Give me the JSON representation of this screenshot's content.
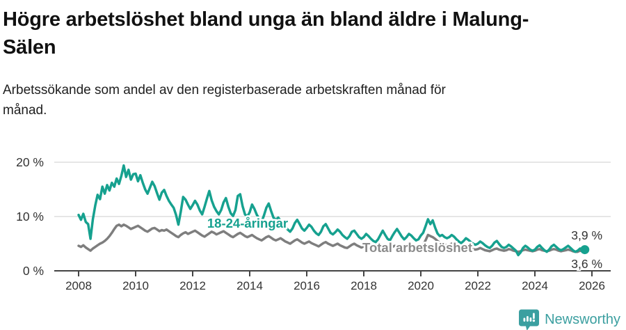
{
  "header": {
    "title": "Högre arbetslöshet bland unga än bland äldre i Malung-Sälen",
    "subtitle": "Arbetssökande som andel av den registerbaserade arbetskraften månad för månad."
  },
  "chart_data": {
    "type": "line",
    "unit": "percent",
    "x_start_year": 2008,
    "x_interval": "monthly",
    "x_end": "2025-10",
    "x_ticks": [
      2008,
      2010,
      2012,
      2014,
      2016,
      2018,
      2020,
      2022,
      2024,
      2026
    ],
    "y_ticks": [
      {
        "value": 0,
        "label": "0 %"
      },
      {
        "value": 10,
        "label": "10 %"
      },
      {
        "value": 20,
        "label": "20 %"
      }
    ],
    "ylim": [
      0,
      21
    ],
    "xlim": [
      2007.2,
      2026.6
    ],
    "grid": "horizontal",
    "legend_position": "inline-labels",
    "series": [
      {
        "name": "18-24-åringar",
        "color": "#16a18f",
        "end_label": "3,9 %",
        "end_value": 3.9,
        "end_dot": true,
        "values": [
          10.3,
          9.4,
          10.5,
          9.0,
          8.6,
          5.9,
          9.5,
          12.0,
          14.0,
          13.2,
          15.5,
          14.2,
          15.8,
          14.8,
          16.2,
          15.5,
          17.0,
          16.0,
          17.5,
          19.4,
          17.3,
          18.6,
          16.8,
          17.8,
          17.9,
          16.5,
          17.6,
          16.2,
          15.0,
          14.2,
          15.3,
          16.4,
          15.6,
          14.3,
          13.1,
          14.4,
          14.9,
          13.8,
          12.9,
          12.2,
          11.6,
          10.3,
          8.5,
          10.9,
          13.6,
          13.1,
          12.2,
          11.4,
          12.1,
          12.9,
          12.2,
          11.1,
          10.4,
          11.8,
          13.3,
          14.7,
          13.0,
          11.8,
          11.0,
          10.4,
          11.2,
          12.6,
          13.4,
          11.8,
          10.6,
          10.1,
          11.2,
          13.8,
          14.1,
          11.9,
          10.4,
          10.0,
          10.8,
          12.2,
          11.4,
          10.3,
          9.6,
          9.0,
          10.2,
          11.6,
          12.4,
          11.0,
          9.8,
          9.4,
          9.8,
          9.2,
          8.6,
          8.0,
          7.6,
          7.2,
          7.8,
          8.8,
          9.4,
          8.6,
          7.8,
          7.4,
          7.9,
          8.5,
          8.1,
          7.4,
          6.9,
          6.6,
          7.2,
          8.2,
          8.6,
          7.8,
          7.0,
          6.7,
          7.1,
          7.6,
          7.2,
          6.6,
          6.2,
          5.9,
          6.4,
          7.2,
          7.4,
          6.8,
          6.2,
          5.9,
          6.2,
          6.8,
          6.4,
          5.9,
          5.5,
          5.3,
          5.8,
          6.6,
          7.4,
          6.6,
          5.9,
          5.6,
          6.4,
          7.1,
          7.7,
          7.0,
          6.3,
          5.8,
          6.2,
          6.8,
          6.5,
          6.0,
          5.6,
          5.8,
          6.5,
          7.0,
          8.2,
          9.5,
          8.6,
          9.3,
          8.0,
          6.9,
          6.4,
          6.6,
          6.2,
          6.0,
          6.2,
          6.6,
          6.3,
          5.8,
          5.4,
          5.1,
          5.5,
          6.0,
          5.7,
          5.3,
          5.0,
          4.8,
          5.0,
          5.4,
          5.1,
          4.7,
          4.4,
          4.2,
          4.6,
          5.2,
          5.5,
          4.9,
          4.4,
          4.2,
          4.4,
          4.8,
          4.5,
          4.1,
          3.7,
          2.9,
          3.4,
          4.2,
          4.6,
          4.3,
          3.9,
          3.7,
          3.9,
          4.4,
          4.7,
          4.2,
          3.8,
          3.5,
          3.9,
          4.5,
          4.8,
          4.4,
          4.0,
          3.8,
          4.0,
          4.3,
          4.6,
          4.2,
          3.8,
          3.5,
          3.7,
          4.1,
          4.0,
          3.9
        ]
      },
      {
        "name": "Total arbetslöshet",
        "color": "#7e7e7e",
        "end_label": "3,6 %",
        "end_value": 3.6,
        "end_dot": false,
        "values": [
          4.6,
          4.4,
          4.7,
          4.3,
          4.0,
          3.7,
          4.1,
          4.4,
          4.7,
          5.0,
          5.2,
          5.5,
          5.9,
          6.4,
          7.0,
          7.7,
          8.3,
          8.5,
          8.2,
          8.5,
          8.3,
          8.0,
          7.7,
          7.9,
          8.1,
          8.3,
          8.0,
          7.7,
          7.4,
          7.2,
          7.5,
          7.8,
          7.9,
          7.6,
          7.3,
          7.5,
          7.4,
          7.6,
          7.3,
          7.0,
          6.7,
          6.4,
          6.2,
          6.6,
          6.9,
          7.1,
          6.8,
          7.0,
          7.2,
          7.4,
          7.1,
          6.8,
          6.5,
          6.3,
          6.6,
          6.9,
          7.2,
          7.0,
          6.7,
          6.9,
          7.1,
          7.3,
          7.0,
          6.7,
          6.4,
          6.2,
          6.5,
          6.8,
          7.0,
          6.7,
          6.4,
          6.2,
          6.4,
          6.6,
          6.3,
          6.0,
          5.8,
          5.6,
          5.9,
          6.2,
          6.4,
          6.1,
          5.8,
          5.6,
          5.8,
          6.0,
          5.7,
          5.4,
          5.2,
          5.0,
          5.3,
          5.6,
          5.8,
          5.5,
          5.2,
          5.0,
          5.2,
          5.4,
          5.1,
          4.9,
          4.7,
          4.5,
          4.8,
          5.1,
          5.3,
          5.0,
          4.8,
          4.6,
          4.8,
          5.0,
          4.7,
          4.5,
          4.3,
          4.2,
          4.5,
          4.8,
          5.0,
          4.7,
          4.5,
          4.3,
          4.5,
          4.7,
          4.4,
          4.2,
          4.1,
          4.0,
          4.3,
          4.6,
          4.8,
          4.5,
          4.3,
          4.2,
          4.4,
          4.6,
          4.4,
          4.2,
          4.1,
          4.0,
          4.2,
          4.5,
          4.6,
          4.4,
          4.2,
          4.3,
          4.5,
          4.8,
          5.6,
          6.6,
          6.4,
          6.2,
          5.9,
          5.5,
          5.2,
          5.0,
          4.8,
          4.7,
          4.8,
          5.0,
          4.8,
          4.5,
          4.3,
          4.1,
          4.3,
          4.5,
          4.4,
          4.2,
          4.0,
          3.9,
          4.0,
          4.2,
          4.0,
          3.8,
          3.7,
          3.6,
          3.8,
          4.0,
          4.1,
          3.9,
          3.8,
          3.7,
          3.8,
          4.0,
          3.9,
          3.7,
          3.6,
          3.5,
          3.6,
          3.8,
          3.9,
          3.8,
          3.7,
          3.6,
          3.7,
          3.9,
          4.0,
          3.8,
          3.7,
          3.6,
          3.7,
          3.9,
          4.0,
          3.9,
          3.7,
          3.6,
          3.7,
          3.8,
          3.9,
          3.8,
          3.6,
          3.5,
          3.5,
          3.7,
          3.6,
          3.6
        ]
      }
    ]
  },
  "footer": {
    "brand": "Newsworthy"
  },
  "colors": {
    "accent_teal": "#16a18f",
    "series_gray": "#7e7e7e",
    "grid": "#dddddd",
    "axis": "#444444",
    "text": "#111111",
    "tick_text": "#333333",
    "label_gray": "#8b8b8b",
    "logo_teal": "#3b9fa0"
  }
}
